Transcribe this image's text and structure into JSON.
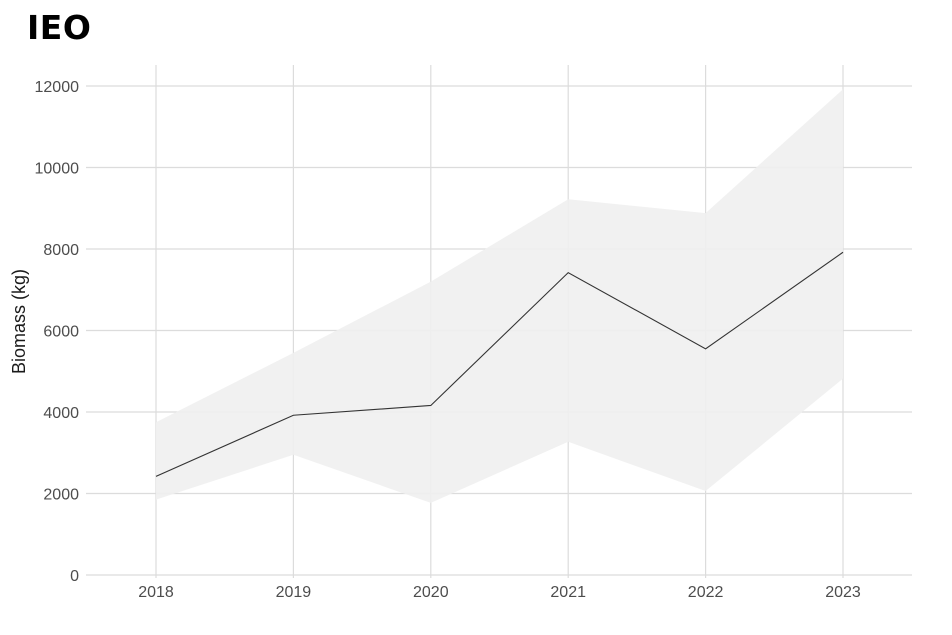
{
  "chart_data": {
    "type": "line",
    "title": "IEO",
    "xlabel": "",
    "ylabel": "Biomass (kg)",
    "x": [
      2018,
      2019,
      2020,
      2021,
      2022,
      2023
    ],
    "x_tick_labels": [
      "2018",
      "2019",
      "2020",
      "2021",
      "2022",
      "2023"
    ],
    "y_tick_labels": [
      "0",
      "2000",
      "4000",
      "6000",
      "8000",
      "10000",
      "12000"
    ],
    "y_ticks": [
      0,
      2000,
      4000,
      6000,
      8000,
      10000,
      12000
    ],
    "ylim": [
      0,
      12000
    ],
    "xlim": [
      2017.5,
      2023.5
    ],
    "grid": true,
    "series": [
      {
        "values": [
          2420,
          3920,
          4160,
          7420,
          5550,
          7920
        ],
        "lower": [
          1850,
          2950,
          1770,
          3270,
          2060,
          4820
        ],
        "upper": [
          3750,
          5450,
          7200,
          9220,
          8880,
          11920
        ]
      }
    ],
    "colors": {
      "line": "#333333",
      "band": "#f0f0f0",
      "grid": "#dcdcdc"
    }
  }
}
